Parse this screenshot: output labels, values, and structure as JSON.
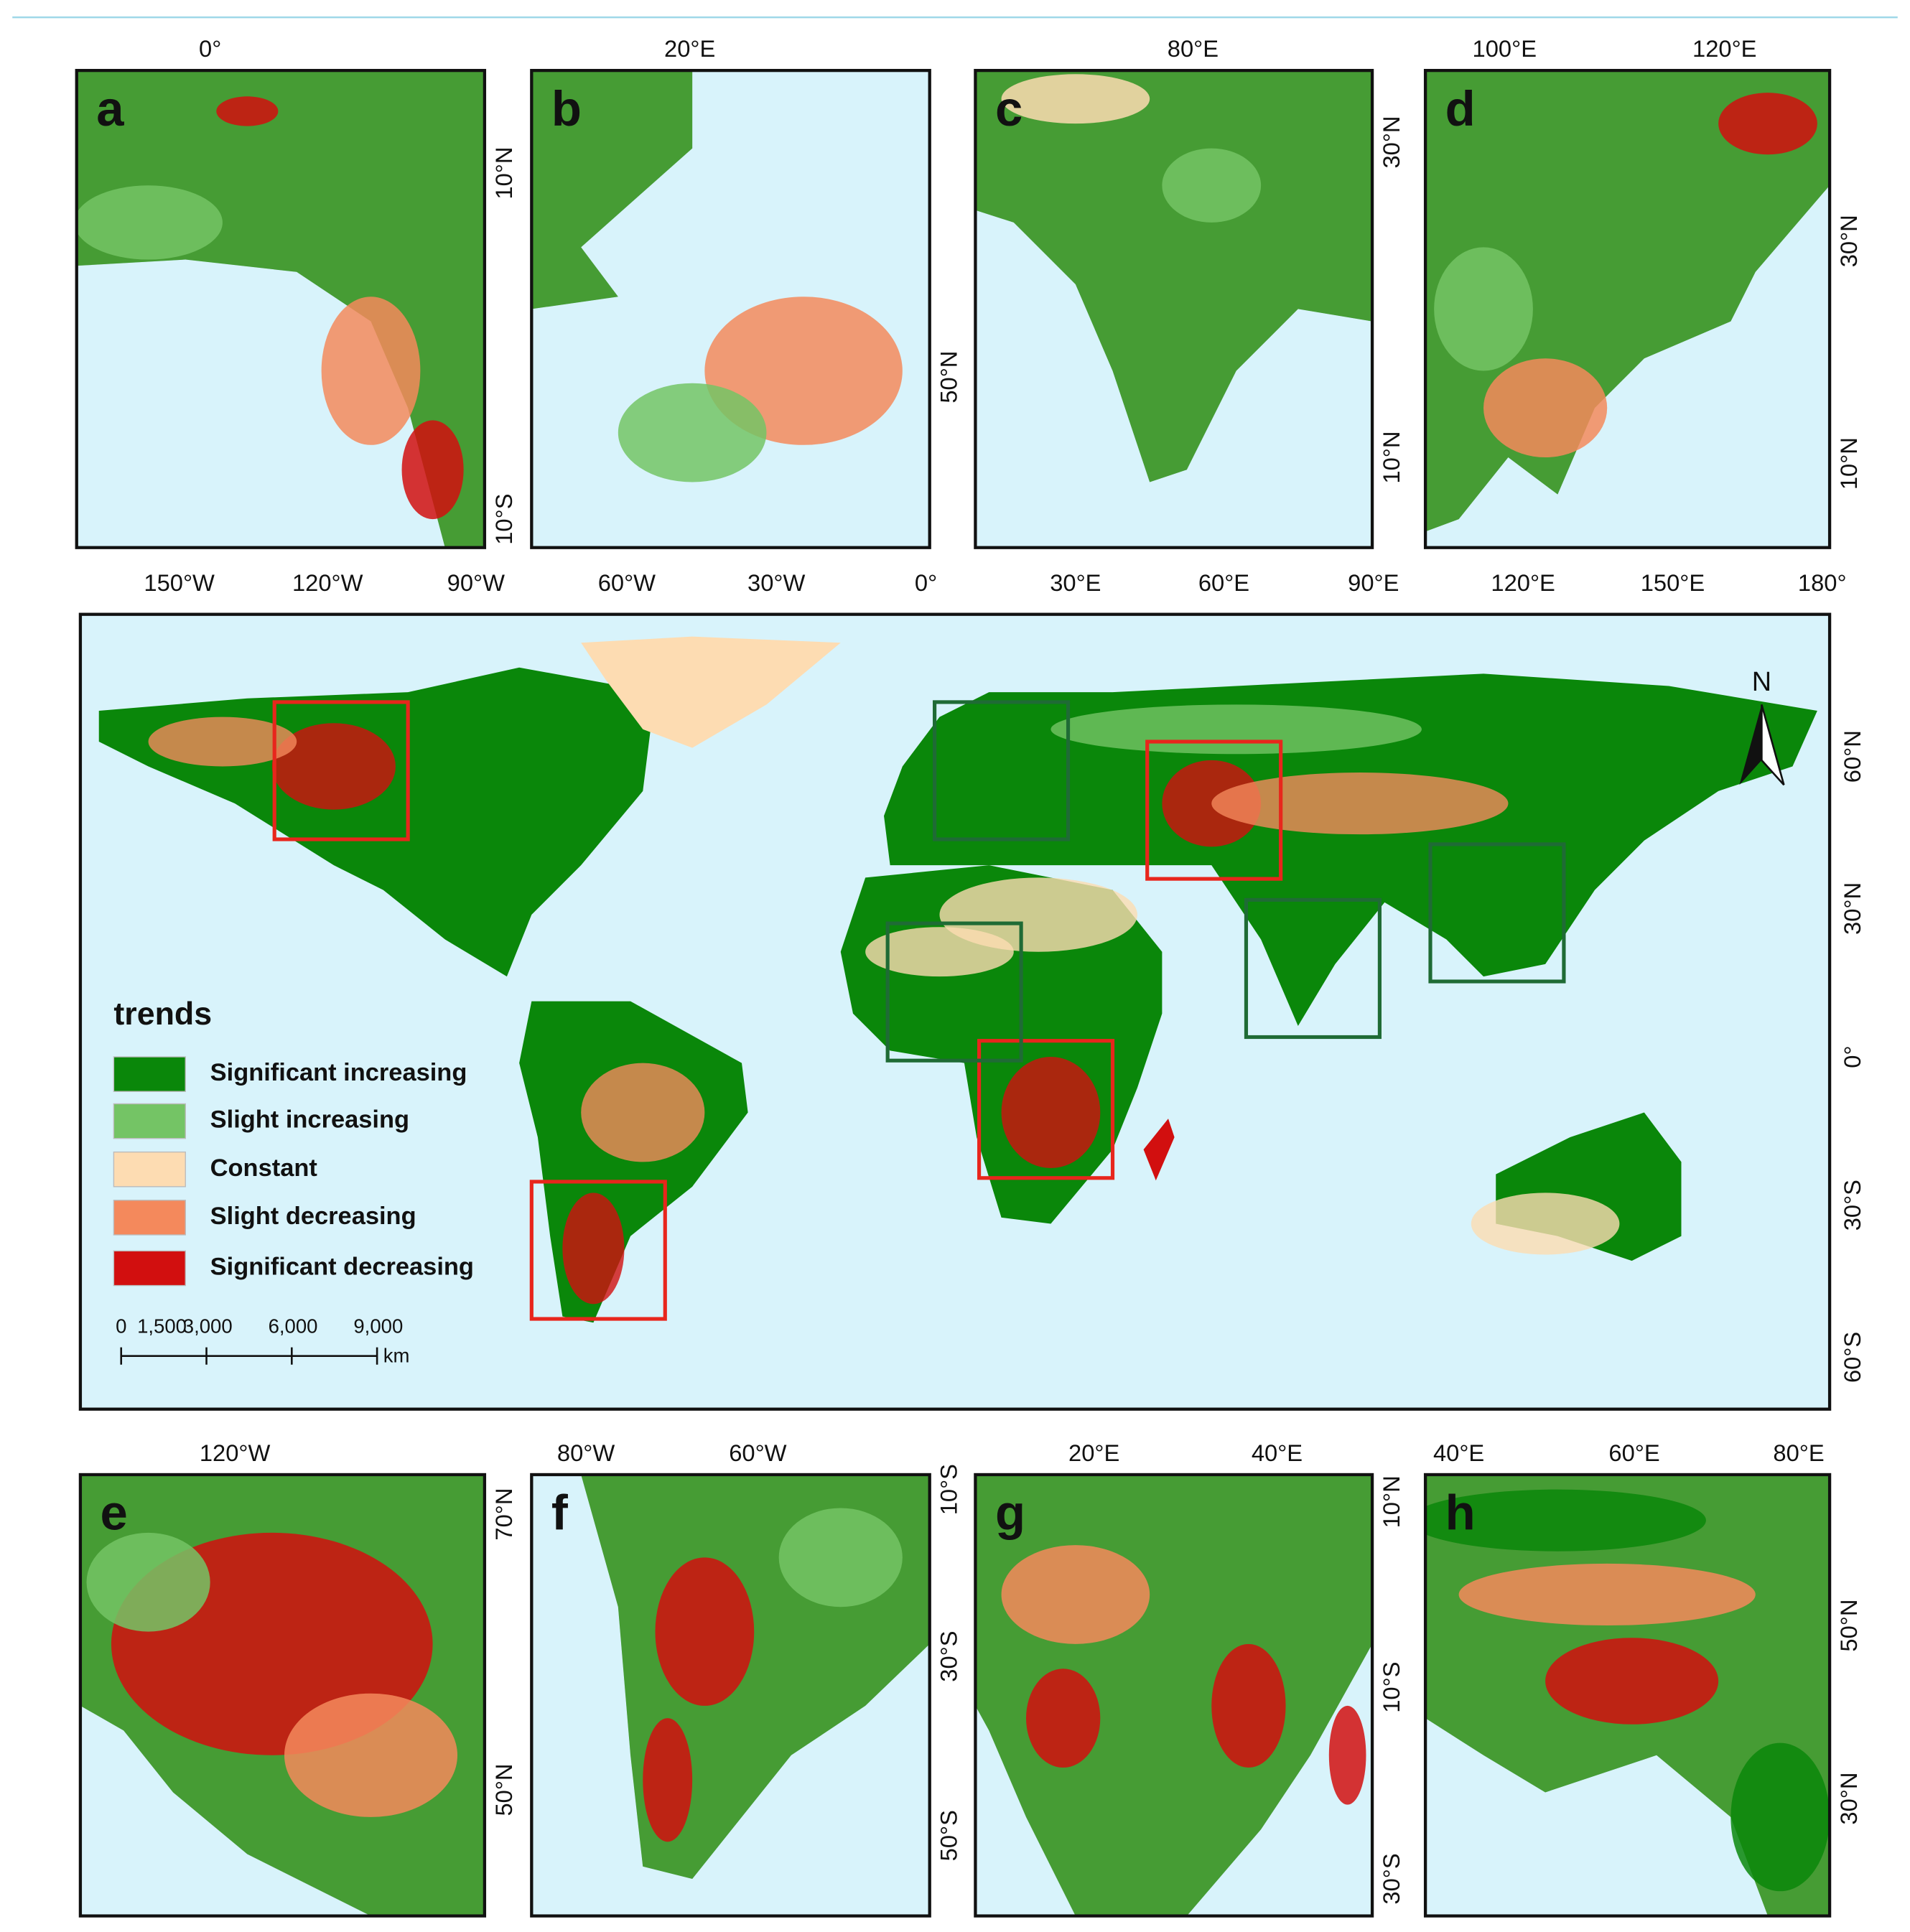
{
  "panels": [
    {
      "label": "a",
      "top_ticks": [
        "0°"
      ],
      "side_ticks": [
        "10°N",
        "10°S"
      ]
    },
    {
      "label": "b",
      "top_ticks": [
        "20°E"
      ],
      "side_ticks": [
        "50°N"
      ]
    },
    {
      "label": "c",
      "top_ticks": [
        "80°E"
      ],
      "side_ticks": [
        "30°N",
        "10°N"
      ]
    },
    {
      "label": "d",
      "top_ticks": [
        "100°E",
        "120°E"
      ],
      "side_ticks": [
        "30°N",
        "10°N"
      ]
    },
    {
      "label": "e",
      "top_ticks": [
        "120°W"
      ],
      "side_ticks": [
        "70°N",
        "50°N"
      ]
    },
    {
      "label": "f",
      "top_ticks": [
        "80°W",
        "60°W"
      ],
      "side_ticks": [
        "10°S",
        "30°S",
        "50°S"
      ]
    },
    {
      "label": "g",
      "top_ticks": [
        "20°E",
        "40°E"
      ],
      "side_ticks": [
        "10°N",
        "10°S",
        "30°S"
      ]
    },
    {
      "label": "h",
      "top_ticks": [
        "40°E",
        "60°E",
        "80°E"
      ],
      "side_ticks": [
        "50°N",
        "30°N"
      ]
    }
  ],
  "main_map": {
    "top_ticks": [
      "150°W",
      "120°W",
      "90°W",
      "60°W",
      "30°W",
      "0°",
      "30°E",
      "60°E",
      "90°E",
      "120°E",
      "150°E",
      "180°"
    ],
    "side_ticks": [
      "60°N",
      "30°N",
      "0°",
      "30°S",
      "60°S"
    ],
    "north": "N"
  },
  "legend": {
    "title": "trends",
    "items": [
      {
        "label": "Significant increasing",
        "color": "#0a870a"
      },
      {
        "label": "Slight increasing",
        "color": "#74c465"
      },
      {
        "label": "Constant",
        "color": "#fddcb2"
      },
      {
        "label": "Slight decreasing",
        "color": "#f4895c"
      },
      {
        "label": "Significant decreasing",
        "color": "#d20f0f"
      }
    ]
  },
  "scale_bar": {
    "labels": [
      "0",
      "1,500",
      "3,000",
      "6,000",
      "9,000"
    ],
    "unit": "km"
  }
}
